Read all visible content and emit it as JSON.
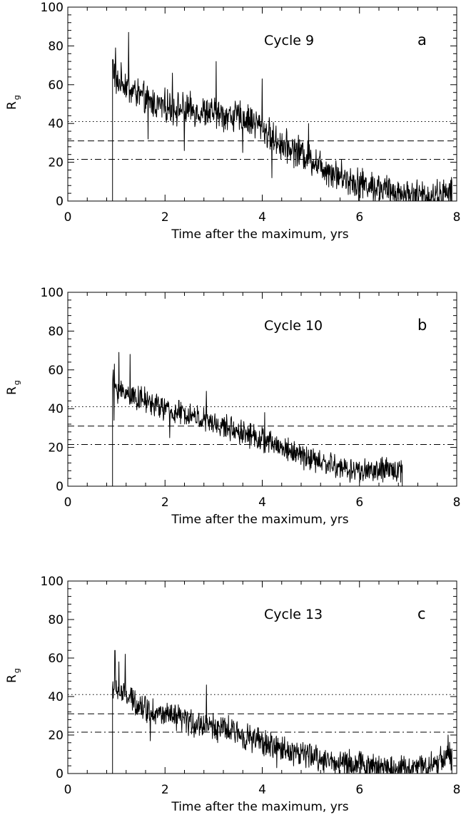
{
  "chart_data": [
    {
      "type": "line",
      "panel_letter": "a",
      "title": "Cycle 9",
      "xlabel": "Time after the maximum, yrs",
      "ylabel": "R",
      "ylabel_subscript": "g",
      "xlim": [
        0,
        8
      ],
      "ylim": [
        0,
        100
      ],
      "xticks": [
        0,
        2,
        4,
        6,
        8
      ],
      "yticks": [
        0,
        20,
        40,
        60,
        80,
        100
      ],
      "reference_lines": [
        {
          "style": "dotted",
          "y": 41
        },
        {
          "style": "dashed",
          "y": 31
        },
        {
          "style": "dash-dot",
          "y": 21.5
        }
      ],
      "series": [
        {
          "x_start": 0.92,
          "x_end": 7.9,
          "points": [
            [
              0.92,
              72
            ],
            [
              1.0,
              60
            ],
            [
              1.1,
              62
            ],
            [
              1.2,
              60
            ],
            [
              1.3,
              57
            ],
            [
              1.4,
              56
            ],
            [
              1.5,
              54
            ],
            [
              1.6,
              52
            ],
            [
              1.8,
              50
            ],
            [
              2.0,
              49
            ],
            [
              2.2,
              48
            ],
            [
              2.5,
              47
            ],
            [
              2.8,
              46
            ],
            [
              3.0,
              45
            ],
            [
              3.3,
              44
            ],
            [
              3.6,
              43
            ],
            [
              3.9,
              40
            ],
            [
              4.1,
              35
            ],
            [
              4.3,
              31
            ],
            [
              4.5,
              28
            ],
            [
              4.8,
              25
            ],
            [
              5.0,
              22
            ],
            [
              5.3,
              17
            ],
            [
              5.6,
              13
            ],
            [
              5.9,
              10
            ],
            [
              6.2,
              8
            ],
            [
              6.5,
              6
            ],
            [
              6.8,
              4
            ],
            [
              7.1,
              3
            ],
            [
              7.4,
              2.5
            ],
            [
              7.7,
              3
            ],
            [
              7.9,
              4
            ]
          ],
          "noise": 6.5,
          "peaks": [
            [
              1.25,
              87
            ],
            [
              0.98,
              79
            ],
            [
              3.05,
              72
            ],
            [
              2.15,
              66
            ],
            [
              4.0,
              63
            ],
            [
              4.95,
              40
            ],
            [
              7.85,
              9
            ]
          ],
          "dips": [
            [
              4.2,
              12
            ],
            [
              2.4,
              26
            ],
            [
              1.65,
              32
            ],
            [
              3.6,
              25
            ]
          ]
        }
      ]
    },
    {
      "type": "line",
      "panel_letter": "b",
      "title": "Cycle 10",
      "xlabel": "Time after the maximum, yrs",
      "ylabel": "R",
      "ylabel_subscript": "g",
      "xlim": [
        0,
        8
      ],
      "ylim": [
        0,
        100
      ],
      "xticks": [
        0,
        2,
        4,
        6,
        8
      ],
      "yticks": [
        0,
        20,
        40,
        60,
        80,
        100
      ],
      "reference_lines": [
        {
          "style": "dotted",
          "y": 41
        },
        {
          "style": "dashed",
          "y": 31
        },
        {
          "style": "dash-dot",
          "y": 21.5
        }
      ],
      "series": [
        {
          "x_start": 0.92,
          "x_end": 6.88,
          "points": [
            [
              0.92,
              55
            ],
            [
              1.0,
              50
            ],
            [
              1.2,
              48
            ],
            [
              1.4,
              46
            ],
            [
              1.6,
              44
            ],
            [
              1.8,
              42
            ],
            [
              2.0,
              40
            ],
            [
              2.2,
              38
            ],
            [
              2.5,
              37
            ],
            [
              2.8,
              34
            ],
            [
              3.0,
              32
            ],
            [
              3.3,
              30
            ],
            [
              3.6,
              28
            ],
            [
              3.9,
              25
            ],
            [
              4.2,
              22
            ],
            [
              4.5,
              19
            ],
            [
              4.8,
              16
            ],
            [
              5.1,
              13
            ],
            [
              5.4,
              11
            ],
            [
              5.7,
              9
            ],
            [
              6.0,
              8
            ],
            [
              6.3,
              8
            ],
            [
              6.6,
              8
            ],
            [
              6.88,
              9
            ]
          ],
          "noise": 5,
          "peaks": [
            [
              1.05,
              69
            ],
            [
              1.28,
              68
            ],
            [
              0.96,
              63
            ],
            [
              2.85,
              49
            ],
            [
              4.05,
              38
            ]
          ],
          "dips": [
            [
              0.95,
              34
            ],
            [
              2.1,
              25
            ],
            [
              5.8,
              2
            ]
          ]
        }
      ]
    },
    {
      "type": "line",
      "panel_letter": "c",
      "title": "Cycle 13",
      "xlabel": "Time after the maximum, yrs",
      "ylabel": "R",
      "ylabel_subscript": "g",
      "xlim": [
        0,
        8
      ],
      "ylim": [
        0,
        100
      ],
      "xticks": [
        0,
        2,
        4,
        6,
        8
      ],
      "yticks": [
        0,
        20,
        40,
        60,
        80,
        100
      ],
      "reference_lines": [
        {
          "style": "dotted",
          "y": 41
        },
        {
          "style": "dashed",
          "y": 31
        },
        {
          "style": "dash-dot",
          "y": 21.5
        }
      ],
      "series": [
        {
          "x_start": 0.92,
          "x_end": 7.9,
          "points": [
            [
              0.92,
              45
            ],
            [
              1.0,
              44
            ],
            [
              1.2,
              40
            ],
            [
              1.4,
              37
            ],
            [
              1.6,
              34
            ],
            [
              1.8,
              32
            ],
            [
              2.0,
              30
            ],
            [
              2.3,
              28
            ],
            [
              2.6,
              26
            ],
            [
              2.9,
              25
            ],
            [
              3.2,
              23
            ],
            [
              3.5,
              21
            ],
            [
              3.8,
              18
            ],
            [
              4.1,
              15
            ],
            [
              4.4,
              13
            ],
            [
              4.7,
              11
            ],
            [
              5.0,
              9
            ],
            [
              5.3,
              7
            ],
            [
              5.6,
              6
            ],
            [
              5.9,
              5
            ],
            [
              6.2,
              4
            ],
            [
              6.5,
              3
            ],
            [
              6.8,
              3
            ],
            [
              7.1,
              3
            ],
            [
              7.4,
              4
            ],
            [
              7.6,
              6
            ],
            [
              7.8,
              10
            ],
            [
              7.9,
              8
            ]
          ],
          "noise": 5.5,
          "peaks": [
            [
              0.97,
              64
            ],
            [
              1.05,
              58
            ],
            [
              1.18,
              62
            ],
            [
              2.85,
              46
            ],
            [
              7.82,
              20
            ]
          ],
          "dips": [
            [
              1.7,
              17
            ],
            [
              4.3,
              3
            ],
            [
              5.5,
              0
            ]
          ]
        }
      ]
    }
  ]
}
